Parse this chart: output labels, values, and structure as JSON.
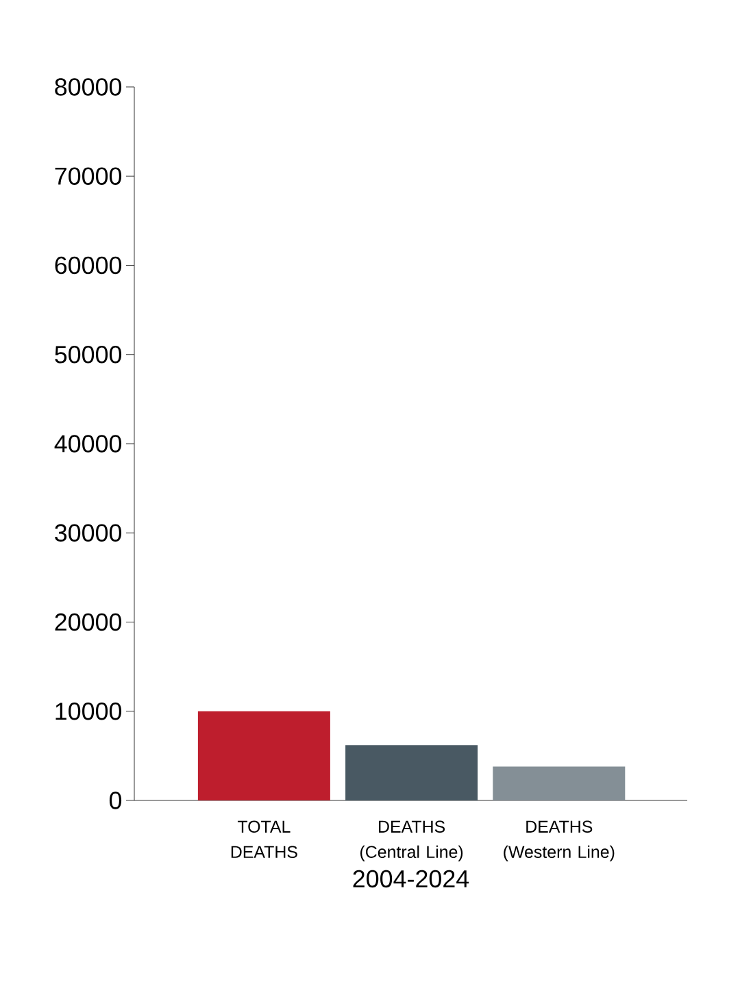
{
  "chart_data": {
    "type": "bar",
    "xlabel": "2004-2024",
    "categories": [
      "TOTAL DEATHS",
      "DEATHS (Central Line)",
      "DEATHS (Western Line)"
    ],
    "values": [
      10000,
      6200,
      3800
    ],
    "colors": [
      "#be1e2d",
      "#495963",
      "#848f96"
    ],
    "ylim": [
      0,
      80000
    ],
    "yticks": [
      0,
      10000,
      20000,
      30000,
      40000,
      50000,
      60000,
      70000,
      80000
    ],
    "grid": false
  }
}
